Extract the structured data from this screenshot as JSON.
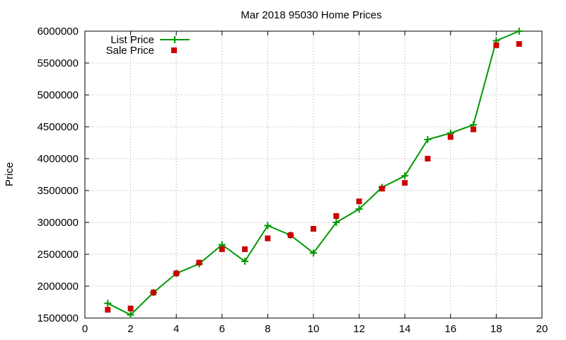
{
  "chart_data": {
    "type": "line",
    "title": "Mar 2018 95030 Home Prices",
    "xlabel": "",
    "ylabel": "Price",
    "xlim": [
      0,
      20
    ],
    "ylim": [
      1500000,
      6000000
    ],
    "x_ticks": [
      "0",
      "2",
      "4",
      "6",
      "8",
      "10",
      "12",
      "14",
      "16",
      "18",
      "20"
    ],
    "y_ticks": [
      "1500000",
      "2000000",
      "2500000",
      "3000000",
      "3500000",
      "4000000",
      "4500000",
      "5000000",
      "5500000",
      "6000000"
    ],
    "grid": true,
    "legend_position": "top-left",
    "series": [
      {
        "name": "List Price",
        "style": "line-plus",
        "color": "#009900",
        "x": [
          1,
          2,
          3,
          4,
          5,
          6,
          7,
          8,
          9,
          10,
          11,
          12,
          13,
          14,
          15,
          16,
          17,
          18,
          19
        ],
        "values": [
          1730000,
          1550000,
          1900000,
          2200000,
          2350000,
          2650000,
          2390000,
          2950000,
          2800000,
          2520000,
          3000000,
          3210000,
          3550000,
          3730000,
          4300000,
          4400000,
          4530000,
          5850000,
          6000000
        ]
      },
      {
        "name": "Sale Price",
        "style": "square-marker",
        "color": "#cc0000",
        "x": [
          1,
          2,
          3,
          4,
          5,
          6,
          7,
          8,
          9,
          10,
          11,
          12,
          13,
          14,
          15,
          16,
          17,
          18,
          19
        ],
        "values": [
          1630000,
          1650000,
          1900000,
          2200000,
          2370000,
          2580000,
          2580000,
          2750000,
          2800000,
          2900000,
          3100000,
          3330000,
          3530000,
          3620000,
          4000000,
          4340000,
          4460000,
          5780000,
          5800000
        ]
      }
    ]
  }
}
